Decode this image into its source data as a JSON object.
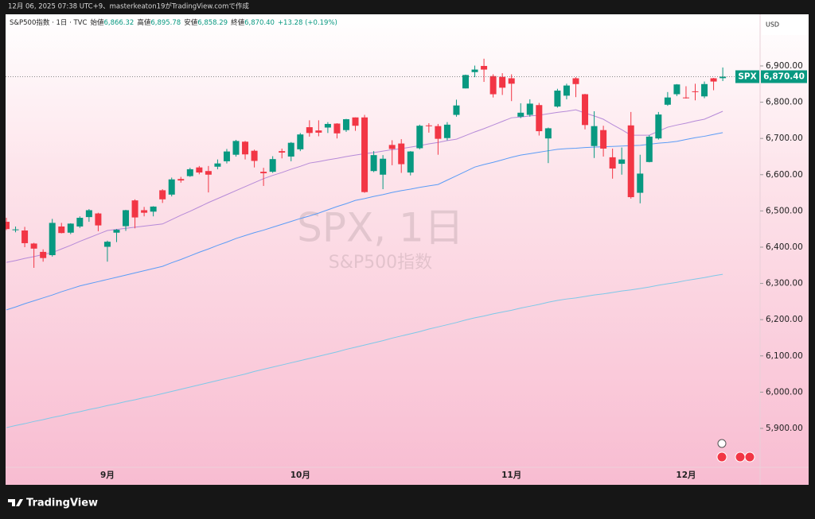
{
  "header": {
    "caption": "12月 06, 2025 07:38 UTC+9、masterkeaton19がTradingView.comで作成",
    "symbol": "S&P500指数 · 1日 · TVC",
    "open_label": "始値",
    "open": "6,866.32",
    "high_label": "高値",
    "high": "6,895.78",
    "low_label": "安値",
    "low": "6,858.29",
    "close_label": "終値",
    "close": "6,870.40",
    "change": "+13.28 (+0.19%)"
  },
  "footer": {
    "logo": "TradingView"
  },
  "chart_data": {
    "type": "candlestick",
    "watermark": "SPX, 1日",
    "watermark_sub": "S&P500指数",
    "currency": "USD",
    "symbol_tag": "SPX",
    "last_price_label": "6,870.40",
    "up_color": "#089981",
    "down_color": "#f23645",
    "categories": [
      null,
      null,
      null,
      null,
      null,
      null,
      null,
      null,
      null,
      null,
      null,
      "9月",
      null,
      null,
      null,
      null,
      null,
      null,
      null,
      null,
      null,
      null,
      null,
      null,
      null,
      null,
      null,
      null,
      null,
      null,
      null,
      null,
      "10月",
      null,
      null,
      null,
      null,
      null,
      null,
      null,
      null,
      null,
      null,
      null,
      null,
      null,
      null,
      null,
      null,
      null,
      null,
      null,
      null,
      null,
      null,
      "11月",
      null,
      null,
      null,
      null,
      null,
      null,
      null,
      null,
      null,
      null,
      null,
      null,
      null,
      null,
      null,
      null,
      null,
      null,
      "12月",
      null,
      null,
      null,
      null
    ],
    "open": [
      6470,
      6447,
      6446,
      6410,
      6387,
      6378,
      6457,
      6440,
      6457,
      6483,
      6493,
      6401,
      6440,
      6458,
      6529,
      6502,
      6498,
      6557,
      6545,
      6588,
      6596,
      6620,
      6610,
      6622,
      6637,
      6655,
      6691,
      6666,
      6608,
      6608,
      6665,
      6650,
      6670,
      6731,
      6722,
      6730,
      6741,
      6723,
      6758,
      6758,
      6610,
      6600,
      6682,
      6686,
      6606,
      6673,
      6736,
      6734,
      6701,
      6765,
      6838,
      6883,
      6900,
      6872,
      6870,
      6866,
      6760,
      6765,
      6792,
      6700,
      6788,
      6818,
      6866,
      6822,
      6679,
      6723,
      6648,
      6630,
      6736,
      6550,
      6635,
      6700,
      6793,
      6822,
      6813,
      6830,
      6816,
      6866,
      6866.32
    ],
    "high": [
      6481,
      6457,
      6456,
      6412,
      6394,
      6478,
      6467,
      6466,
      6485,
      6505,
      6495,
      6418,
      6450,
      6503,
      6532,
      6511,
      6513,
      6560,
      6592,
      6594,
      6619,
      6624,
      6624,
      6642,
      6671,
      6696,
      6693,
      6669,
      6619,
      6651,
      6672,
      6690,
      6715,
      6750,
      6750,
      6745,
      6742,
      6754,
      6758,
      6765,
      6665,
      6654,
      6695,
      6698,
      6665,
      6738,
      6742,
      6740,
      6745,
      6807,
      6876,
      6901,
      6920,
      6877,
      6880,
      6877,
      6797,
      6808,
      6798,
      6730,
      6837,
      6851,
      6869,
      6823,
      6775,
      6735,
      6672,
      6675,
      6773,
      6655,
      6709,
      6773,
      6828,
      6850,
      6844,
      6851,
      6857,
      6867,
      6895.78
    ],
    "low": [
      6447,
      6441,
      6400,
      6343,
      6360,
      6374,
      6438,
      6436,
      6453,
      6470,
      6444,
      6360,
      6414,
      6445,
      6452,
      6485,
      6485,
      6522,
      6540,
      6578,
      6594,
      6601,
      6551,
      6615,
      6631,
      6650,
      6642,
      6620,
      6569,
      6605,
      6645,
      6637,
      6665,
      6705,
      6706,
      6715,
      6700,
      6718,
      6721,
      6550,
      6607,
      6560,
      6626,
      6605,
      6598,
      6670,
      6716,
      6655,
      6695,
      6760,
      6838,
      6869,
      6856,
      6813,
      6820,
      6803,
      6756,
      6760,
      6708,
      6632,
      6785,
      6808,
      6814,
      6725,
      6646,
      6650,
      6589,
      6600,
      6534,
      6521,
      6634,
      6697,
      6790,
      6817,
      6810,
      6805,
      6811,
      6833,
      6858.29
    ],
    "close": [
      6450,
      6449,
      6411,
      6396,
      6370,
      6467,
      6439,
      6465,
      6481,
      6502,
      6460,
      6415,
      6448,
      6502,
      6482,
      6495,
      6512,
      6532,
      6587,
      6584,
      6615,
      6606,
      6600,
      6631,
      6664,
      6693,
      6656,
      6638,
      6604,
      6643,
      6661,
      6688,
      6711,
      6715,
      6716,
      6740,
      6714,
      6753,
      6735,
      6552,
      6654,
      6644,
      6671,
      6629,
      6664,
      6735,
      6735,
      6699,
      6738,
      6791,
      6875,
      6890,
      6890,
      6822,
      6840,
      6851,
      6771,
      6796,
      6720,
      6728,
      6832,
      6846,
      6850,
      6737,
      6734,
      6672,
      6617,
      6642,
      6538,
      6603,
      6705,
      6766,
      6813,
      6849,
      6812,
      6829,
      6850,
      6857,
      6870.4
    ],
    "series": [
      {
        "color": "#b68ad8",
        "values": [
          6358,
          6363,
          6369,
          6374,
          6380,
          6385,
          6395,
          6405,
          6416,
          6426,
          6436,
          6446,
          6449,
          6452,
          6455,
          6458,
          6461,
          6464,
          6476,
          6488,
          6499,
          6511,
          6523,
          6534,
          6545,
          6556,
          6567,
          6578,
          6589,
          6598,
          6606,
          6615,
          6623,
          6632,
          6636,
          6641,
          6645,
          6650,
          6654,
          6658,
          6661,
          6665,
          6669,
          6672,
          6676,
          6680,
          6685,
          6689,
          6694,
          6698,
          6708,
          6718,
          6727,
          6737,
          6747,
          6757,
          6759,
          6762,
          6764,
          6768,
          6772,
          6775,
          6779,
          6770,
          6762,
          6753,
          6738,
          6724,
          6709,
          6709,
          6709,
          6720,
          6731,
          6737,
          6742,
          6748,
          6753,
          6764,
          6775
        ]
      },
      {
        "color": "#5b9cf6",
        "values": [
          6227,
          6235,
          6244,
          6252,
          6260,
          6268,
          6277,
          6285,
          6293,
          6299,
          6305,
          6311,
          6317,
          6323,
          6329,
          6335,
          6341,
          6347,
          6357,
          6366,
          6376,
          6386,
          6395,
          6405,
          6414,
          6424,
          6432,
          6440,
          6447,
          6455,
          6463,
          6471,
          6479,
          6486,
          6494,
          6503,
          6512,
          6520,
          6529,
          6534,
          6540,
          6545,
          6551,
          6556,
          6560,
          6565,
          6569,
          6573,
          6585,
          6597,
          6609,
          6621,
          6628,
          6634,
          6641,
          6648,
          6654,
          6658,
          6662,
          6666,
          6670,
          6672,
          6673,
          6675,
          6676,
          6677,
          6678,
          6679,
          6680,
          6681,
          6684,
          6687,
          6689,
          6692,
          6697,
          6702,
          6706,
          6711,
          6716
        ]
      },
      {
        "color": "#7ec8e8",
        "values": [
          5902,
          5908,
          5913,
          5919,
          5924,
          5930,
          5935,
          5941,
          5946,
          5952,
          5957,
          5963,
          5968,
          5974,
          5979,
          5985,
          5990,
          5996,
          6002,
          6008,
          6014,
          6020,
          6026,
          6032,
          6038,
          6044,
          6050,
          6057,
          6063,
          6069,
          6075,
          6081,
          6087,
          6093,
          6099,
          6105,
          6111,
          6118,
          6124,
          6130,
          6136,
          6142,
          6149,
          6155,
          6161,
          6167,
          6174,
          6180,
          6186,
          6192,
          6199,
          6205,
          6210,
          6216,
          6221,
          6226,
          6232,
          6237,
          6242,
          6248,
          6253,
          6257,
          6260,
          6264,
          6268,
          6271,
          6275,
          6279,
          6282,
          6286,
          6290,
          6295,
          6299,
          6303,
          6308,
          6312,
          6316,
          6321,
          6325
        ]
      }
    ],
    "ylim": [
      5792.5,
      7042.5
    ],
    "yticks": [
      {
        "value": 5900,
        "label": "5,900.00"
      },
      {
        "value": 6000,
        "label": "6,000.00"
      },
      {
        "value": 6100,
        "label": "6,100.00"
      },
      {
        "value": 6200,
        "label": "6,200.00"
      },
      {
        "value": 6300,
        "label": "6,300.00"
      },
      {
        "value": 6400,
        "label": "6,400.00"
      },
      {
        "value": 6500,
        "label": "6,500.00"
      },
      {
        "value": 6600,
        "label": "6,600.00"
      },
      {
        "value": 6700,
        "label": "6,700.00"
      },
      {
        "value": 6800,
        "label": "6,800.00"
      },
      {
        "value": 6900,
        "label": "6,900.00"
      }
    ],
    "grid": false
  }
}
